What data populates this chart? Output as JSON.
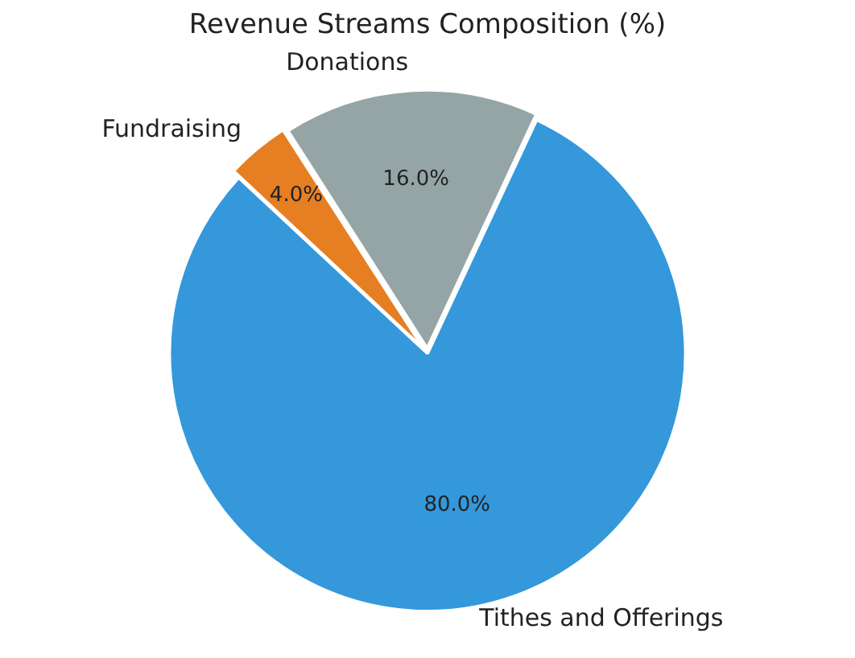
{
  "chart_data": {
    "type": "pie",
    "title": "Revenue Streams Composition (%)",
    "categories": [
      "Tithes and Offerings",
      "Fundraising",
      "Donations"
    ],
    "values": [
      80,
      4,
      16
    ],
    "colors": [
      "#3498db",
      "#e67e22",
      "#95a5a6"
    ],
    "value_labels": [
      "80.0%",
      "4.0%",
      "16.0%"
    ],
    "legend": false
  }
}
